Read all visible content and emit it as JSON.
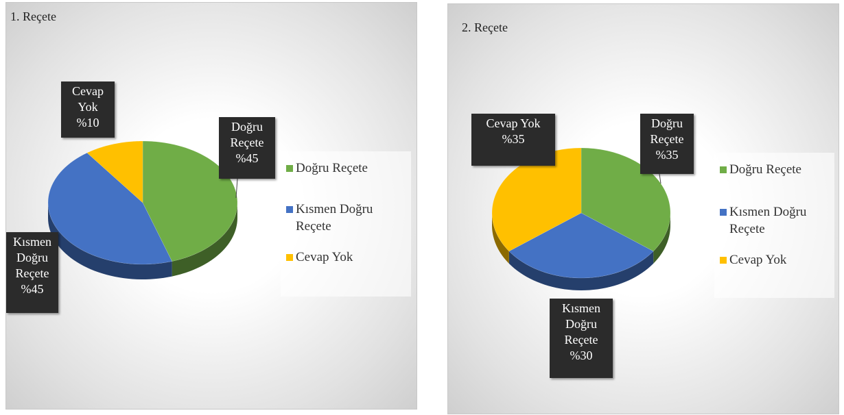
{
  "chart_data": [
    {
      "type": "pie",
      "title": "1. Reçete",
      "categories": [
        "Doğru Reçete",
        "Kısmen Doğru Reçete",
        "Cevap Yok"
      ],
      "values": [
        45,
        45,
        10
      ],
      "value_labels": [
        "%45",
        "%45",
        "%10"
      ],
      "colors": [
        "#70ad47",
        "#4472c4",
        "#ffc000"
      ],
      "legend": "right"
    },
    {
      "type": "pie",
      "title": "2. Reçete",
      "categories": [
        "Doğru Reçete",
        "Kısmen Doğru Reçete",
        "Cevap Yok"
      ],
      "values": [
        35,
        30,
        35
      ],
      "value_labels": [
        "%35",
        "%30",
        "%35"
      ],
      "colors": [
        "#70ad47",
        "#4472c4",
        "#ffc000"
      ],
      "legend": "right"
    }
  ]
}
